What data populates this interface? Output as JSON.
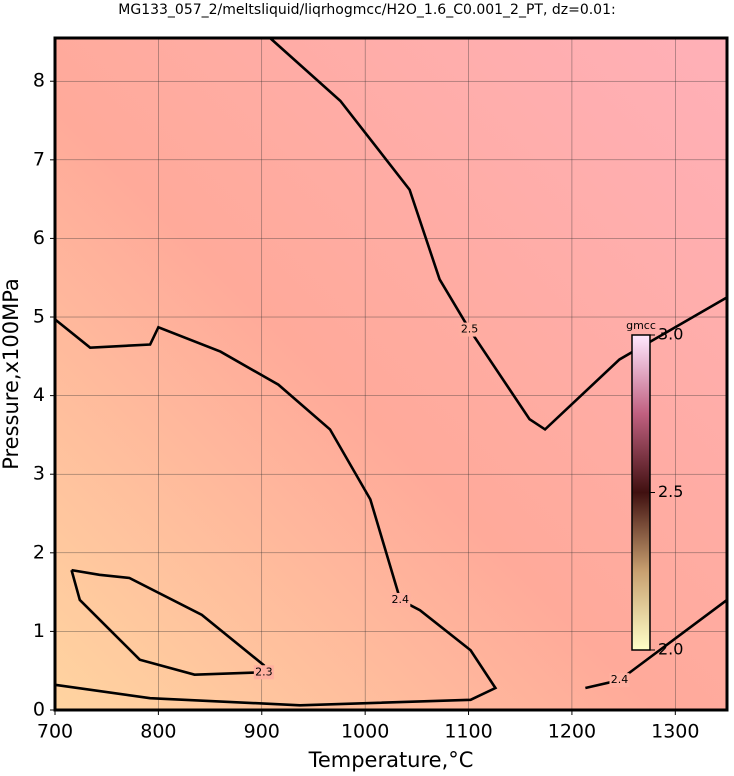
{
  "chart_data": {
    "type": "contour",
    "title": "MG133_057_2/meltsliquid/liqrhogmcc/H2O_1.6_C0.001_2_PT, dz=0.01:",
    "x_label": "Temperature,°C",
    "y_label": "Pressure,x100MPa",
    "xlim": [
      700,
      1350
    ],
    "ylim": [
      0,
      8.55
    ],
    "xticks": [
      700,
      800,
      900,
      1000,
      1100,
      1200,
      1300
    ],
    "yticks": [
      0,
      1,
      2,
      3,
      4,
      5,
      6,
      7,
      8
    ],
    "grid": true,
    "contours": [
      {
        "level": 2.5,
        "x": [
          908,
          976,
          1043,
          1072,
          1101,
          1159,
          1174,
          1246,
          1350
        ],
        "y": [
          8.55,
          7.75,
          6.62,
          5.48,
          4.84,
          3.7,
          3.57,
          4.46,
          5.25
        ]
      },
      {
        "level": 2.4,
        "x": [
          700,
          734,
          792,
          800,
          860,
          916,
          966,
          1005,
          1034,
          1053,
          1102,
          1126,
          1102,
          937,
          792,
          700
        ],
        "y": [
          4.97,
          4.61,
          4.65,
          4.87,
          4.56,
          4.14,
          3.57,
          2.68,
          1.4,
          1.27,
          0.76,
          0.28,
          0.13,
          0.06,
          0.15,
          0.32
        ]
      },
      {
        "level": 2.4,
        "x": [
          1213,
          1246,
          1350
        ],
        "y": [
          0.28,
          0.38,
          1.4
        ]
      },
      {
        "level": 2.3,
        "x": [
          716,
          743,
          772,
          842,
          902,
          902,
          835,
          782,
          753,
          724,
          716
        ],
        "y": [
          1.78,
          1.72,
          1.68,
          1.21,
          0.57,
          0.48,
          0.45,
          0.64,
          1.02,
          1.4,
          1.78
        ]
      }
    ],
    "colorbar": {
      "label": "gmcc",
      "lim": [
        2.0,
        3.0
      ],
      "ticks": [
        {
          "value": 2,
          "label": "2.0"
        },
        2.5,
        {
          "value": 3,
          "label": "3.0"
        }
      ]
    }
  }
}
